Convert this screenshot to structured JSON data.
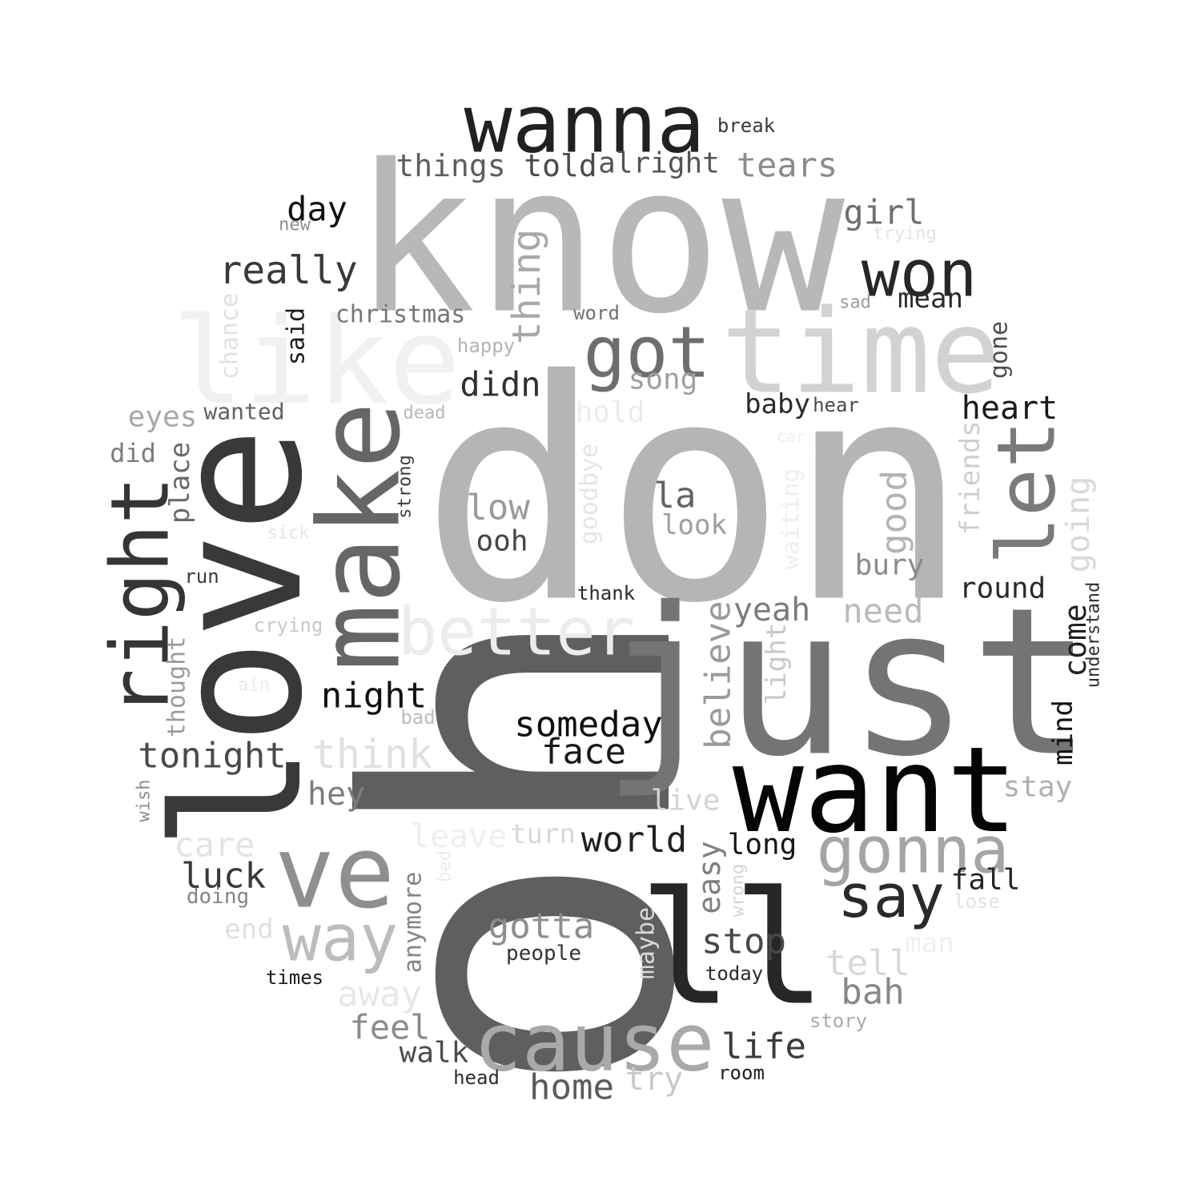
{
  "word_cloud": {
    "words": [
      {
        "text": "oh",
        "color": "#5f5f5f"
      },
      {
        "text": "don",
        "color": "#b5b5b5"
      },
      {
        "text": "know",
        "color": "#b8b8b8"
      },
      {
        "text": "just",
        "color": "#747474"
      },
      {
        "text": "ll",
        "color": "#272727"
      },
      {
        "text": "love",
        "color": "#393939"
      },
      {
        "text": "like",
        "color": "#f1f1f1"
      },
      {
        "text": "time",
        "color": "#d2d2d2"
      },
      {
        "text": "want",
        "color": "#050505"
      },
      {
        "text": "make",
        "color": "#666666"
      },
      {
        "text": "ve",
        "color": "#8f8f8f"
      },
      {
        "text": "wanna",
        "color": "#212121"
      },
      {
        "text": "right",
        "color": "#353535"
      },
      {
        "text": "let",
        "color": "#7a7a7a"
      },
      {
        "text": "cause",
        "color": "#a9a9a9"
      },
      {
        "text": "gonna",
        "color": "#a5a5a5"
      },
      {
        "text": "better",
        "color": "#ececec"
      },
      {
        "text": "got",
        "color": "#6e6e6e"
      },
      {
        "text": "won",
        "color": "#272727"
      },
      {
        "text": "way",
        "color": "#bcbcbc"
      },
      {
        "text": "say",
        "color": "#2a2a2a"
      },
      {
        "text": "really",
        "color": "#393939"
      },
      {
        "text": "things",
        "color": "#5e5e5e"
      },
      {
        "text": "told",
        "color": "#4a4a4a"
      },
      {
        "text": "alright",
        "color": "#555555"
      },
      {
        "text": "tears",
        "color": "#8b8b8b"
      },
      {
        "text": "break",
        "color": "#3a3a3a"
      },
      {
        "text": "day",
        "color": "#111111"
      },
      {
        "text": "new",
        "color": "#8e8e8e"
      },
      {
        "text": "girl",
        "color": "#6e6e6e"
      },
      {
        "text": "trying",
        "color": "#e3e3e3"
      },
      {
        "text": "sad",
        "color": "#9c9c9c"
      },
      {
        "text": "mean",
        "color": "#2a2a2a"
      },
      {
        "text": "christmas",
        "color": "#767676"
      },
      {
        "text": "word",
        "color": "#707070"
      },
      {
        "text": "happy",
        "color": "#b4b4b4"
      },
      {
        "text": "thing",
        "color": "#a8a8a8"
      },
      {
        "text": "said",
        "color": "#1d1d1d"
      },
      {
        "text": "chance",
        "color": "#e2e2e2"
      },
      {
        "text": "song",
        "color": "#a0a0a0"
      },
      {
        "text": "didn",
        "color": "#303030"
      },
      {
        "text": "gone",
        "color": "#4d4d4d"
      },
      {
        "text": "baby",
        "color": "#2b2b2b"
      },
      {
        "text": "hear",
        "color": "#4a4a4a"
      },
      {
        "text": "heart",
        "color": "#1a1a1a"
      },
      {
        "text": "eyes",
        "color": "#a8a8a8"
      },
      {
        "text": "wanted",
        "color": "#616161"
      },
      {
        "text": "dead",
        "color": "#b8b8b8"
      },
      {
        "text": "hold",
        "color": "#ececec"
      },
      {
        "text": "car",
        "color": "#efefef"
      },
      {
        "text": "did",
        "color": "#7c7c7c"
      },
      {
        "text": "place",
        "color": "#6a6a6a"
      },
      {
        "text": "strong",
        "color": "#3b3b3b"
      },
      {
        "text": "goodbye",
        "color": "#e6e6e6"
      },
      {
        "text": "waiting",
        "color": "#eeeeee"
      },
      {
        "text": "friends",
        "color": "#cfcfcf"
      },
      {
        "text": "going",
        "color": "#d9d9d9"
      },
      {
        "text": "low",
        "color": "#9a9a9a"
      },
      {
        "text": "ooh",
        "color": "#444444"
      },
      {
        "text": "la",
        "color": "#646464"
      },
      {
        "text": "look",
        "color": "#9e9e9e"
      },
      {
        "text": "good",
        "color": "#b3b3b3"
      },
      {
        "text": "sick",
        "color": "#e4e4e4"
      },
      {
        "text": "bury",
        "color": "#8a8a8a"
      },
      {
        "text": "round",
        "color": "#2a2a2a"
      },
      {
        "text": "run",
        "color": "#3a3a3a"
      },
      {
        "text": "thank",
        "color": "#2a2a2a"
      },
      {
        "text": "yeah",
        "color": "#7b7b7b"
      },
      {
        "text": "need",
        "color": "#bbbbbb"
      },
      {
        "text": "believe",
        "color": "#9a9a9a"
      },
      {
        "text": "crying",
        "color": "#c7c7c7"
      },
      {
        "text": "come",
        "color": "#1f1f1f"
      },
      {
        "text": "understand",
        "color": "#2d2d2d"
      },
      {
        "text": "light",
        "color": "#c8c8c8"
      },
      {
        "text": "thought",
        "color": "#9b9b9b"
      },
      {
        "text": "ain",
        "color": "#e9e9e9"
      },
      {
        "text": "night",
        "color": "#111111"
      },
      {
        "text": "mind",
        "color": "#121212"
      },
      {
        "text": "bad",
        "color": "#bdbdbd"
      },
      {
        "text": "someday",
        "color": "#0f0f0f"
      },
      {
        "text": "face",
        "color": "#191919"
      },
      {
        "text": "tonight",
        "color": "#4a4a4a"
      },
      {
        "text": "think",
        "color": "#e0e0e0"
      },
      {
        "text": "hey",
        "color": "#7d7d7d"
      },
      {
        "text": "stay",
        "color": "#b0b0b0"
      },
      {
        "text": "wish",
        "color": "#8c8c8c"
      },
      {
        "text": "live",
        "color": "#d4d4d4"
      },
      {
        "text": "care",
        "color": "#e3e3e3"
      },
      {
        "text": "leave",
        "color": "#efefef"
      },
      {
        "text": "turn",
        "color": "#d8d8d8"
      },
      {
        "text": "world",
        "color": "#202020"
      },
      {
        "text": "long",
        "color": "#161616"
      },
      {
        "text": "easy",
        "color": "#7f7f7f"
      },
      {
        "text": "luck",
        "color": "#3a3a3a"
      },
      {
        "text": "bed",
        "color": "#ebebeb"
      },
      {
        "text": "wrong",
        "color": "#d4d4d4"
      },
      {
        "text": "fall",
        "color": "#242424"
      },
      {
        "text": "lose",
        "color": "#e2e2e2"
      },
      {
        "text": "doing",
        "color": "#858585"
      },
      {
        "text": "anymore",
        "color": "#858585"
      },
      {
        "text": "end",
        "color": "#e0e0e0"
      },
      {
        "text": "gotta",
        "color": "#8d8d8d"
      },
      {
        "text": "people",
        "color": "#333333"
      },
      {
        "text": "maybe",
        "color": "#d9d9d9"
      },
      {
        "text": "stop",
        "color": "#484848"
      },
      {
        "text": "man",
        "color": "#f0f0f0"
      },
      {
        "text": "tell",
        "color": "#d8d8d8"
      },
      {
        "text": "times",
        "color": "#1b1b1b"
      },
      {
        "text": "today",
        "color": "#2b2b2b"
      },
      {
        "text": "away",
        "color": "#e7e7e7"
      },
      {
        "text": "bah",
        "color": "#888888"
      },
      {
        "text": "feel",
        "color": "#8c8c8c"
      },
      {
        "text": "story",
        "color": "#a9a9a9"
      },
      {
        "text": "walk",
        "color": "#4b4b4b"
      },
      {
        "text": "life",
        "color": "#3b3b3b"
      },
      {
        "text": "head",
        "color": "#2f2f2f"
      },
      {
        "text": "room",
        "color": "#1e1e1e"
      },
      {
        "text": "try",
        "color": "#c9c9c9"
      },
      {
        "text": "home",
        "color": "#5b5b5b"
      }
    ]
  }
}
